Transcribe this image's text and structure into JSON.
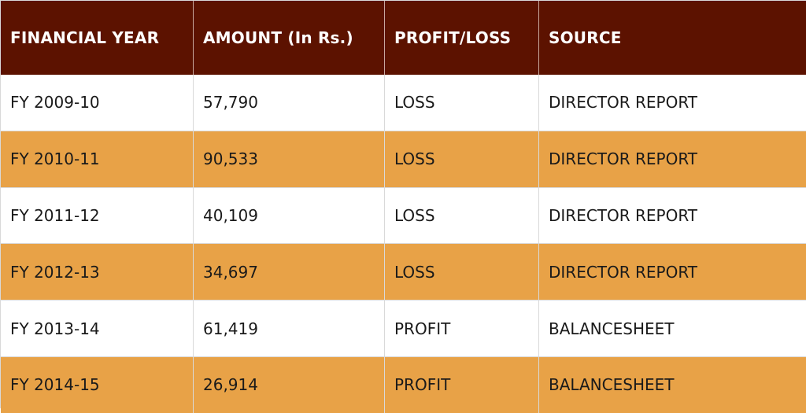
{
  "table": {
    "columns": [
      "FINANCIAL YEAR",
      "AMOUNT (In Rs.)",
      "PROFIT/LOSS",
      "SOURCE"
    ],
    "rows": [
      [
        "FY 2009-10",
        "57,790",
        "LOSS",
        "DIRECTOR REPORT"
      ],
      [
        "FY 2010-11",
        "90,533",
        "LOSS",
        "DIRECTOR REPORT"
      ],
      [
        "FY 2011-12",
        "40,109",
        "LOSS",
        "DIRECTOR REPORT"
      ],
      [
        "FY 2012-13",
        "34,697",
        "LOSS",
        "DIRECTOR REPORT"
      ],
      [
        "FY 2013-14",
        "61,419",
        "PROFIT",
        "BALANCESHEET"
      ],
      [
        "FY 2014-15",
        "26,914",
        "PROFIT",
        "BALANCESHEET"
      ]
    ]
  },
  "colors": {
    "header_bg": "#5c1200",
    "header_text": "#ffffff",
    "row_stripe": "#e8a247",
    "row_plain": "#ffffff"
  }
}
